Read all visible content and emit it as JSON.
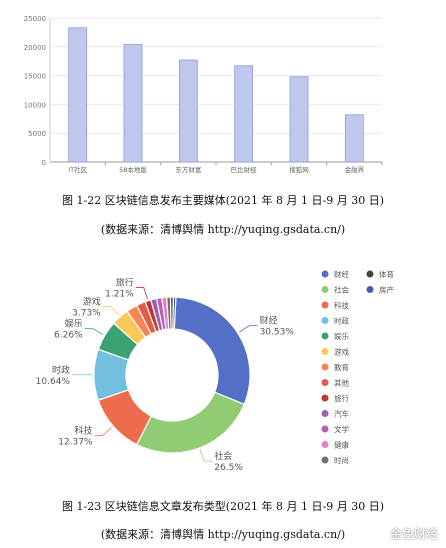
{
  "captions": {
    "bar_title": "图 1-22  区块链信息发布主要媒体(2021 年 8 月 1 日-9 月 30 日)",
    "bar_source": "(数据来源：清博舆情 http://yuqing.gsdata.cn/)",
    "pie_title": "图 1-23  区块链信息文章发布类型(2021 年 8 月 1 日-9 月 30 日)",
    "pie_source": "(数据来源：清博舆情 http://yuqing.gsdata.cn/)"
  },
  "watermark": "金色财经",
  "chart_data": [
    {
      "type": "bar",
      "categories": [
        "IT社区",
        "58本地版",
        "东方财富",
        "巴比财经",
        "搜狐网",
        "金融界"
      ],
      "values": [
        23300,
        20400,
        17700,
        16700,
        14800,
        8200
      ],
      "ylim": [
        0,
        25000
      ],
      "yticks": [
        0,
        5000,
        10000,
        15000,
        20000,
        25000
      ],
      "grid": true,
      "bar_color": "#bfc8ec",
      "bar_stroke": "#8e9bd6"
    },
    {
      "type": "pie",
      "style": "donut",
      "slices": [
        {
          "name": "财经",
          "label": "财经",
          "pct": "30.53%",
          "value": 30.53,
          "color": "#5470c6"
        },
        {
          "name": "社会",
          "label": "社会",
          "pct": "26.5%",
          "value": 26.5,
          "color": "#91cc75"
        },
        {
          "name": "科技",
          "label": "科技",
          "pct": "12.37%",
          "value": 12.37,
          "color": "#ee6c4d"
        },
        {
          "name": "时政",
          "label": "时政",
          "pct": "10.64%",
          "value": 10.64,
          "color": "#73c0de"
        },
        {
          "name": "娱乐",
          "label": "娱乐",
          "pct": "6.26%",
          "value": 6.26,
          "color": "#3ba272"
        },
        {
          "name": "游戏",
          "label": "游戏",
          "pct": "3.73%",
          "value": 3.73,
          "color": "#fac858"
        },
        {
          "name": "教育",
          "label": "",
          "pct": "",
          "value": 2.3,
          "color": "#fc8452"
        },
        {
          "name": "其他",
          "label": "",
          "pct": "",
          "value": 1.9,
          "color": "#e05d4b"
        },
        {
          "name": "旅行",
          "label": "旅行",
          "pct": "1.21%",
          "value": 1.21,
          "color": "#c23531"
        },
        {
          "name": "汽车",
          "label": "",
          "pct": "",
          "value": 1.2,
          "color": "#9a60b4"
        },
        {
          "name": "文学",
          "label": "",
          "pct": "",
          "value": 1.1,
          "color": "#b55fb5"
        },
        {
          "name": "健康",
          "label": "",
          "pct": "",
          "value": 1.0,
          "color": "#ea7ccc"
        },
        {
          "name": "时尚",
          "label": "",
          "pct": "",
          "value": 0.8,
          "color": "#6e7074"
        },
        {
          "name": "体育",
          "label": "",
          "pct": "",
          "value": 0.6,
          "color": "#444444"
        },
        {
          "name": "房产",
          "label": "",
          "pct": "",
          "value": 0.5,
          "color": "#4b5aa8"
        }
      ],
      "legend": {
        "placement": "right",
        "columns": [
          [
            "财经",
            "社会",
            "科技",
            "时政",
            "娱乐",
            "游戏",
            "教育",
            "其他",
            "旅行",
            "汽车",
            "文学",
            "健康",
            "时尚"
          ],
          [
            "体育",
            "房产"
          ]
        ]
      }
    }
  ]
}
